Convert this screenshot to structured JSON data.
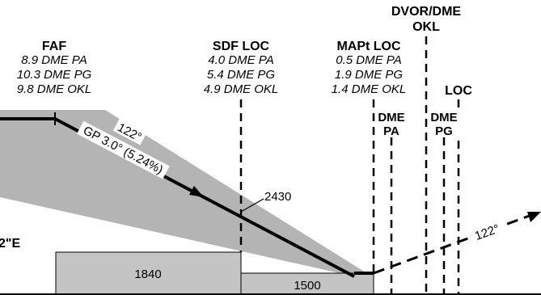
{
  "colors": {
    "sector": "#b4b4b4",
    "box": "#c4c4c4",
    "line": "#000000"
  },
  "faf": {
    "title": "FAF",
    "lines": [
      "8.9 DME PA",
      "10.3 DME PG",
      "9.8 DME OKL"
    ]
  },
  "sdf": {
    "title": "SDF LOC",
    "lines": [
      "4.0 DME PA",
      "5.4 DME PG",
      "4.9 DME OKL"
    ]
  },
  "mapt": {
    "title": "MAPt LOC",
    "lines": [
      "0.5 DME PA",
      "1.9 DME PG",
      "1.4 DME OKL"
    ]
  },
  "dvor": {
    "line1": "DVOR/DME",
    "line2": "OKL"
  },
  "loc_label": "LOC",
  "dme_pa": {
    "line1": "DME",
    "line2": "PA"
  },
  "dme_pg": {
    "line1": "DME",
    "line2": "PG"
  },
  "gp_course": "122°",
  "gp_label": "GP 3.0° (5.24%)",
  "altitude_2430": "2430",
  "box_1840": "1840",
  "box_1500": "1500",
  "missed_course": "122°",
  "coord_fragment": "2\"E"
}
